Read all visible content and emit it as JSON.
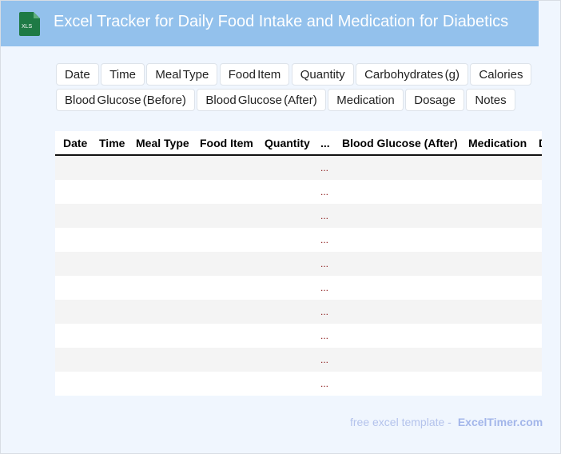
{
  "header": {
    "title": "Excel Tracker for Daily Food Intake and Medication for Diabetics",
    "logo_text": "XLS",
    "colors": {
      "bar": "#93c1ec",
      "logo": "#1e7a45"
    }
  },
  "chips": [
    "Date",
    "Time",
    "Meal Type",
    "Food Item",
    "Quantity",
    "Carbohydrates (g)",
    "Calories",
    "Blood Glucose (Before)",
    "Blood Glucose (After)",
    "Medication",
    "Dosage",
    "Notes"
  ],
  "table": {
    "columns": [
      "Date",
      "Time",
      "Meal Type",
      "Food Item",
      "Quantity",
      "...",
      "Blood Glucose (After)",
      "Medication",
      "D"
    ],
    "rows": [
      "...",
      "...",
      "...",
      "...",
      "...",
      "...",
      "...",
      "...",
      "...",
      "..."
    ]
  },
  "footer": {
    "text": "free excel template -",
    "brand": "ExcelTimer.com"
  }
}
